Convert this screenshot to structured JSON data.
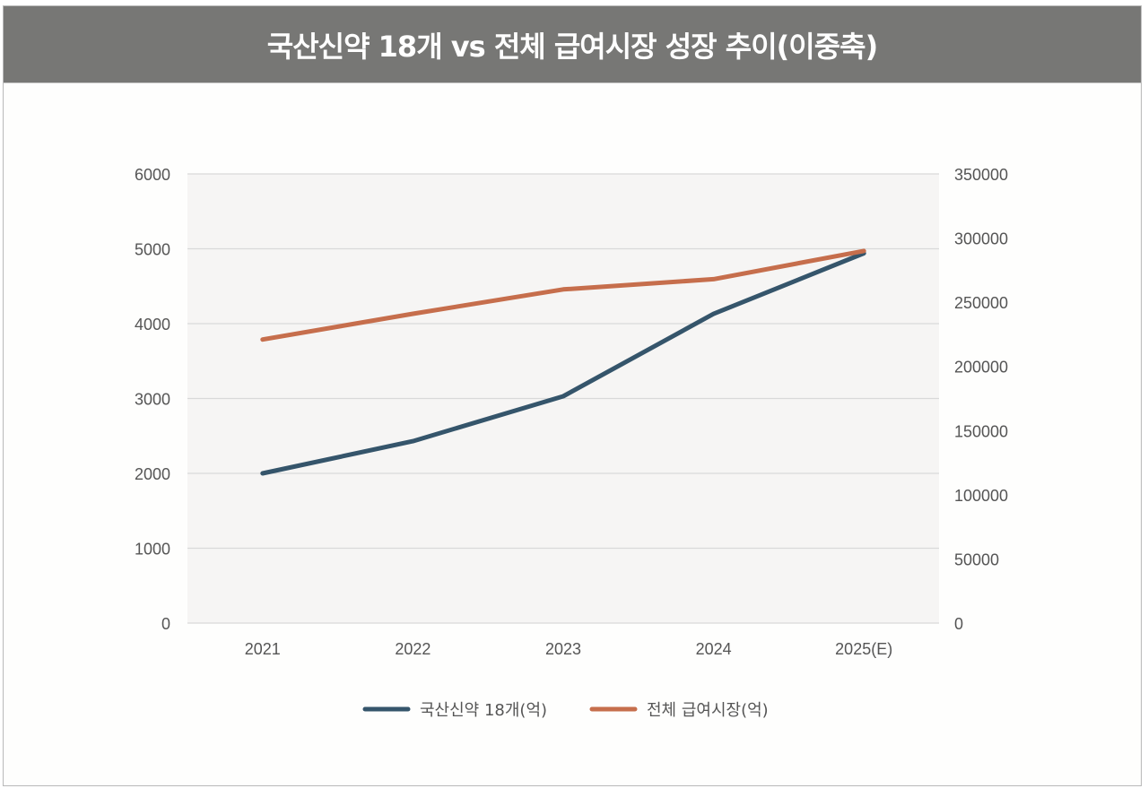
{
  "chart_data": {
    "type": "line",
    "title": "국산신약 18개 vs 전체 급여시장 성장 추이(이중축)",
    "categories": [
      "2021",
      "2022",
      "2023",
      "2024",
      "2025(E)"
    ],
    "series": [
      {
        "name": "국산신약 18개(억)",
        "axis": "left",
        "color": "#35556b",
        "values": [
          2000,
          2430,
          3030,
          4130,
          4940
        ]
      },
      {
        "name": "전체 급여시장(억)",
        "axis": "right",
        "color": "#c66e4c",
        "values": [
          221000,
          241000,
          260000,
          268000,
          290000
        ]
      }
    ],
    "left_axis": {
      "label": "",
      "ylim": [
        0,
        6000
      ],
      "ticks": [
        "0",
        "1000",
        "2000",
        "3000",
        "4000",
        "5000",
        "6000"
      ]
    },
    "right_axis": {
      "label": "",
      "ylim": [
        0,
        350000
      ],
      "ticks": [
        "0",
        "50000",
        "100000",
        "150000",
        "200000",
        "250000",
        "300000",
        "350000"
      ]
    },
    "xlabel": "",
    "grid": true,
    "legend_position": "bottom",
    "plot_background": "#f6f5f4",
    "grid_color": "#d9d9d9"
  }
}
